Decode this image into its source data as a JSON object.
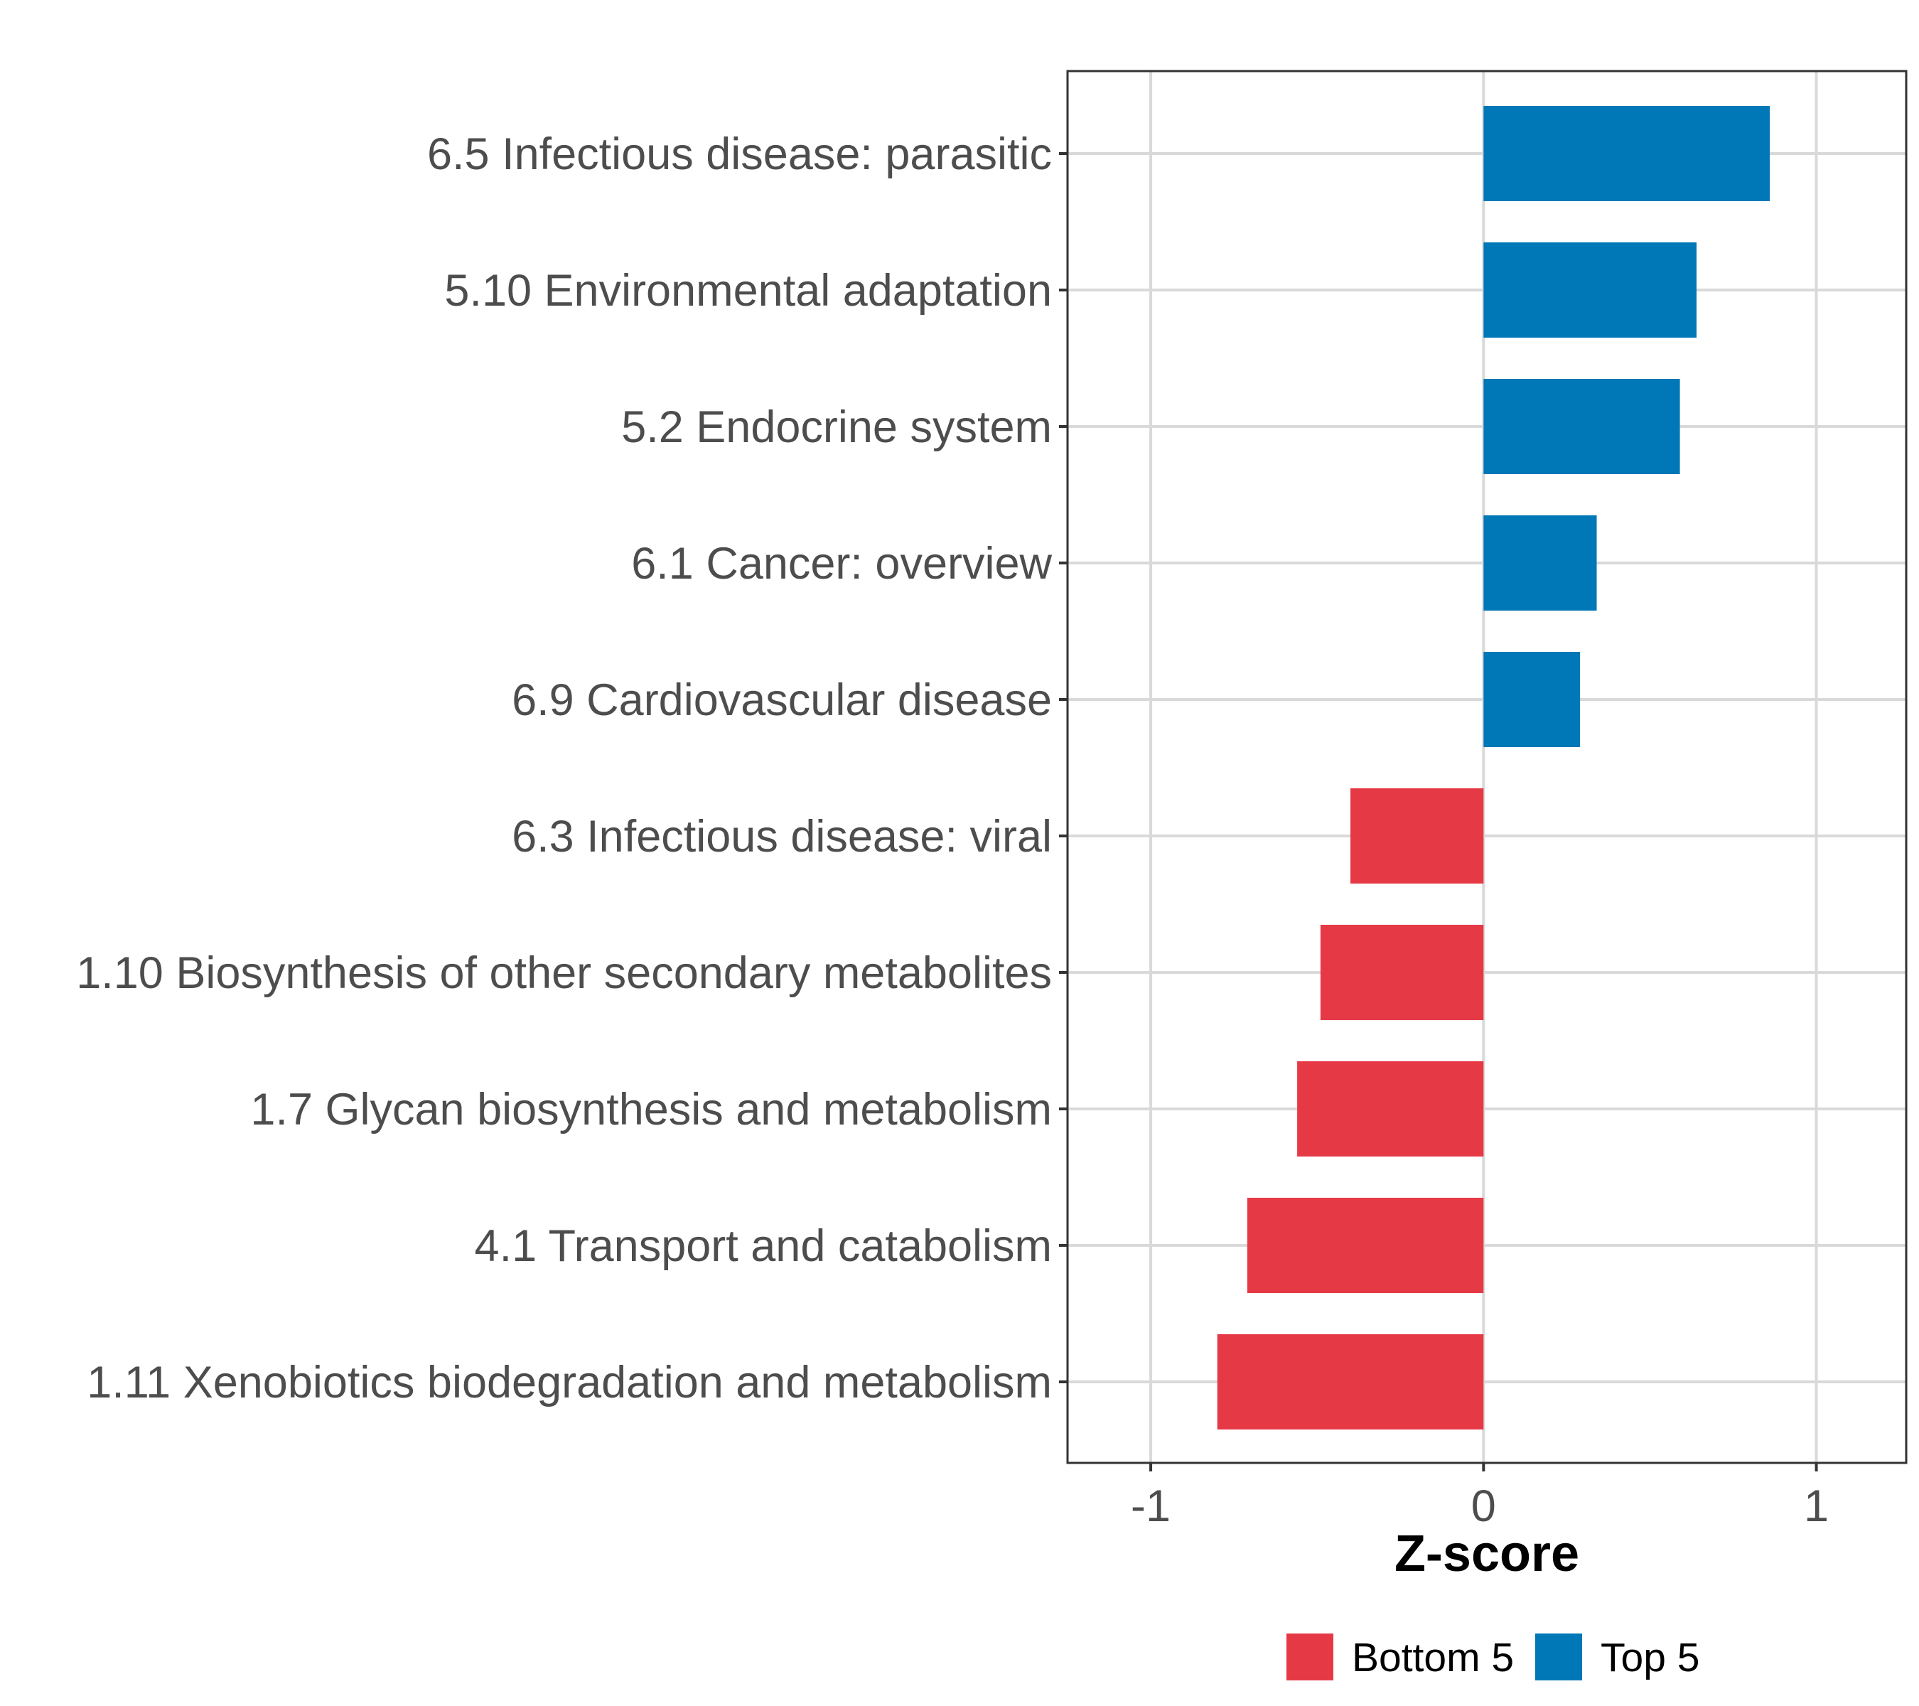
{
  "chart_data": {
    "type": "bar",
    "orientation": "horizontal",
    "title": "",
    "xlabel": "Z-score",
    "ylabel": "",
    "xlim": [
      -1.25,
      1.27
    ],
    "xticks": [
      -1,
      0,
      1
    ],
    "xtick_labels": [
      "-1",
      "0",
      "1"
    ],
    "grid": true,
    "legend_position": "bottom",
    "categories": [
      "6.5 Infectious disease: parasitic",
      "5.10 Environmental adaptation",
      "5.2 Endocrine system",
      "6.1 Cancer: overview",
      "6.9 Cardiovascular disease",
      "6.3 Infectious disease: viral",
      "1.10 Biosynthesis of other secondary metabolites",
      "1.7 Glycan biosynthesis and metabolism",
      "4.1 Transport and catabolism",
      "1.11 Xenobiotics biodegradation and metabolism"
    ],
    "values": [
      0.86,
      0.64,
      0.59,
      0.34,
      0.29,
      -0.4,
      -0.49,
      -0.56,
      -0.71,
      -0.8
    ],
    "groups": [
      "Top 5",
      "Top 5",
      "Top 5",
      "Top 5",
      "Top 5",
      "Bottom 5",
      "Bottom 5",
      "Bottom 5",
      "Bottom 5",
      "Bottom 5"
    ],
    "legend": [
      {
        "name": "Bottom 5",
        "color": "#e63946"
      },
      {
        "name": "Top 5",
        "color": "#0077b6"
      }
    ],
    "colors": {
      "Bottom 5": "#e63946",
      "Top 5": "#0077b6"
    }
  }
}
